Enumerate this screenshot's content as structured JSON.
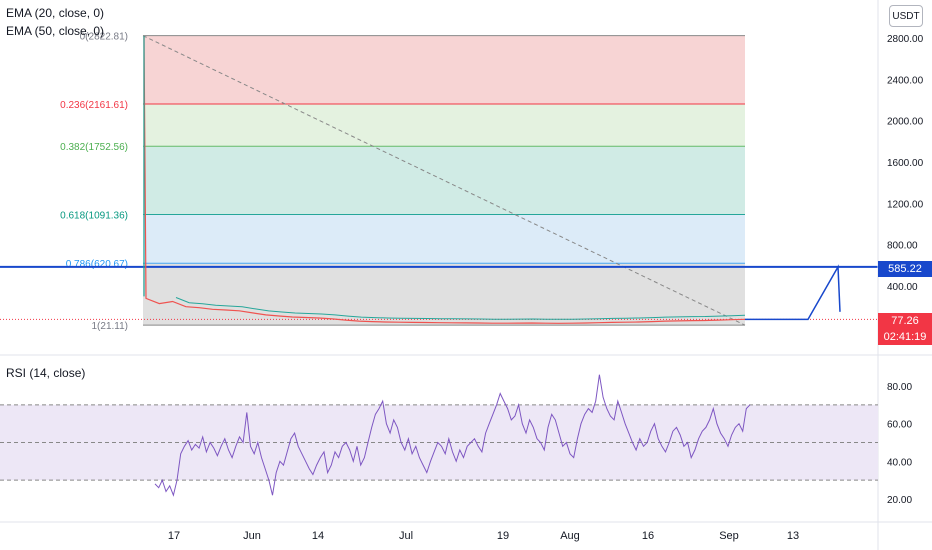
{
  "indicators": {
    "ema20": "EMA (20, close, 0)",
    "ema50": "EMA (50, close, 0)",
    "rsi": "RSI (14, close)"
  },
  "currency": "USDT",
  "price_tags": {
    "horizontal_line": "585.22",
    "last_price": "77.26",
    "countdown": "02:41:19"
  },
  "colors": {
    "fib_0": "#f7d4d4",
    "fib_236": "#e4f2e0",
    "fib_382": "#d0ebe5",
    "fib_618": "#dcebf8",
    "fib_786": "#e0e0e0",
    "horizontal_line": "#1848cc",
    "last_price": "#f23645",
    "rsi_line": "#7e57c2",
    "rsi_band": "#ede7f6",
    "ema20": "#f23645",
    "ema50": "#26a69a"
  },
  "chart_data": [
    {
      "type": "candlestick",
      "title": "",
      "y_axis": {
        "ticks": [
          "2800.00",
          "2400.00",
          "2000.00",
          "1600.00",
          "1200.00",
          "800.00",
          "400.00"
        ],
        "ylim": [
          -60,
          3100
        ]
      },
      "x_axis": {
        "ticks": [
          "17",
          "Jun",
          "14",
          "Jul",
          "19",
          "Aug",
          "16",
          "Sep",
          "13"
        ]
      },
      "fib_levels": [
        {
          "ratio": "0",
          "price": 2822.81,
          "label": "0(2822.81)"
        },
        {
          "ratio": "0.236",
          "price": 2161.61,
          "label": "0.236(2161.61)"
        },
        {
          "ratio": "0.382",
          "price": 1752.56,
          "label": "0.382(1752.56)"
        },
        {
          "ratio": "0.618",
          "price": 1091.36,
          "label": "0.618(1091.36)"
        },
        {
          "ratio": "0.786",
          "price": 620.67,
          "label": "0.786(620.67)"
        },
        {
          "ratio": "1",
          "price": 21.11,
          "label": "1(21.11)"
        }
      ],
      "horizontal_line": 585.22,
      "last_price": 77.26,
      "price_series": [
        2822,
        280,
        230,
        250,
        200,
        190,
        175,
        168,
        160,
        140,
        120,
        110,
        100,
        95,
        90,
        82,
        70,
        60,
        55,
        52,
        50,
        48,
        47,
        45,
        44,
        43,
        42,
        40,
        40,
        41,
        42,
        40,
        39,
        40,
        42,
        45,
        48,
        50,
        52,
        55,
        60,
        62,
        65,
        66,
        70,
        74,
        77.26
      ],
      "projection": [
        [
          77.26,
          85
        ],
        [
          585.22,
          540
        ]
      ]
    },
    {
      "type": "line",
      "title": "RSI (14, close)",
      "y_axis": {
        "ticks": [
          "80.00",
          "60.00",
          "40.00",
          "20.00"
        ],
        "ylim": [
          10,
          90
        ]
      },
      "bands": [
        30,
        50,
        70
      ],
      "values": [
        28,
        26,
        30,
        24,
        27,
        22,
        30,
        44,
        48,
        51,
        46,
        49,
        47,
        53,
        45,
        50,
        47,
        43,
        48,
        52,
        46,
        42,
        48,
        53,
        50,
        66,
        48,
        44,
        50,
        42,
        36,
        30,
        22,
        34,
        40,
        38,
        45,
        52,
        55,
        48,
        44,
        40,
        36,
        33,
        38,
        42,
        45,
        34,
        38,
        45,
        42,
        48,
        50,
        46,
        40,
        48,
        38,
        42,
        50,
        58,
        65,
        68,
        72,
        60,
        55,
        62,
        58,
        50,
        46,
        52,
        44,
        48,
        42,
        38,
        34,
        40,
        45,
        50,
        48,
        44,
        52,
        45,
        40,
        46,
        42,
        48,
        50,
        52,
        48,
        45,
        55,
        60,
        65,
        70,
        76,
        72,
        68,
        62,
        64,
        70,
        60,
        55,
        62,
        58,
        52,
        50,
        46,
        58,
        65,
        62,
        55,
        48,
        50,
        44,
        42,
        52,
        60,
        65,
        68,
        66,
        72,
        86,
        74,
        68,
        64,
        62,
        72,
        66,
        60,
        55,
        50,
        46,
        52,
        48,
        50,
        56,
        60,
        52,
        48,
        45,
        50,
        56,
        58,
        54,
        48,
        50,
        42,
        46,
        52,
        56,
        58,
        62,
        68,
        60,
        55,
        52,
        48,
        54,
        58,
        60,
        56,
        68,
        70
      ]
    }
  ]
}
